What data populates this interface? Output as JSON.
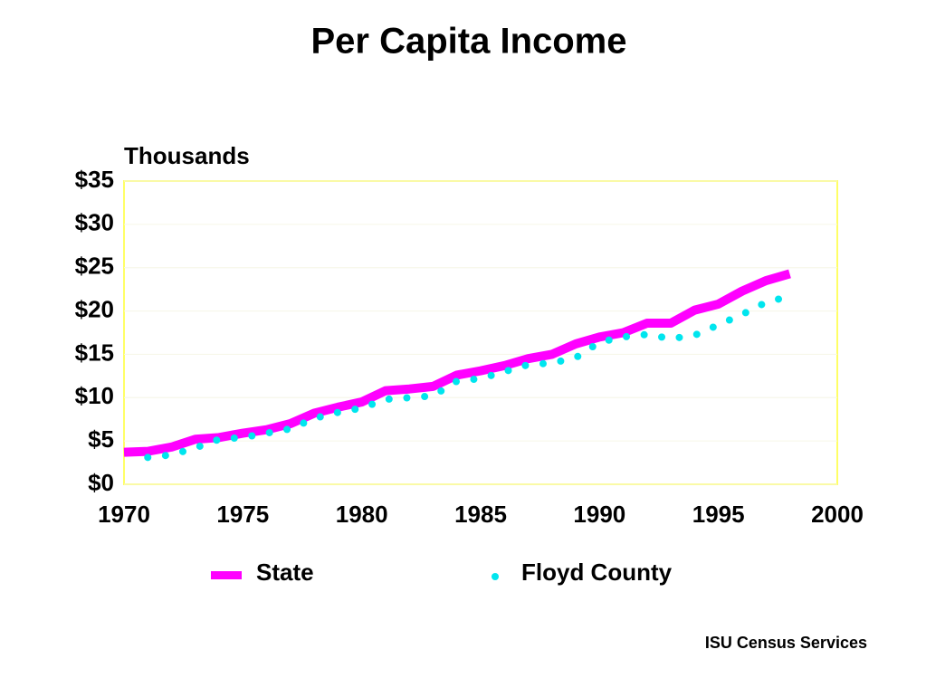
{
  "chart_data": {
    "type": "line",
    "title": "Per Capita Income",
    "y_label": "Thousands",
    "source": "ISU Census Services",
    "x": [
      1970,
      1971,
      1972,
      1973,
      1974,
      1975,
      1976,
      1977,
      1978,
      1979,
      1980,
      1981,
      1982,
      1983,
      1984,
      1985,
      1986,
      1987,
      1988,
      1989,
      1990,
      1991,
      1992,
      1993,
      1994,
      1995,
      1996,
      1997,
      1998
    ],
    "series": [
      {
        "name": "State",
        "color": "#ff00ff",
        "style": "solid",
        "values": [
          3.7,
          3.8,
          4.3,
          5.2,
          5.4,
          5.9,
          6.3,
          7.0,
          8.2,
          8.9,
          9.5,
          10.8,
          11.0,
          11.3,
          12.6,
          13.1,
          13.7,
          14.5,
          15.0,
          16.2,
          17.0,
          17.5,
          18.6,
          18.6,
          20.1,
          20.8,
          22.3,
          23.5,
          24.3
        ]
      },
      {
        "name": "Floyd County",
        "color": "#00e5ee",
        "style": "dotted",
        "values": [
          null,
          3.1,
          3.4,
          4.2,
          5.2,
          5.4,
          5.9,
          6.4,
          7.6,
          8.3,
          8.8,
          9.8,
          10.0,
          10.2,
          11.9,
          12.2,
          13.0,
          13.8,
          14.0,
          14.6,
          16.4,
          17.0,
          17.3,
          16.8,
          17.2,
          18.4,
          19.6,
          21.0,
          21.7
        ]
      }
    ],
    "xlim": [
      1970,
      2000
    ],
    "xticks": [
      1970,
      1975,
      1980,
      1985,
      1990,
      1995,
      2000
    ],
    "ylim": [
      0,
      35
    ],
    "yticks": [
      {
        "value": 0,
        "label": "$0"
      },
      {
        "value": 5,
        "label": "$5"
      },
      {
        "value": 10,
        "label": "$10"
      },
      {
        "value": 15,
        "label": "$15"
      },
      {
        "value": 20,
        "label": "$20"
      },
      {
        "value": 25,
        "label": "$25"
      },
      {
        "value": 30,
        "label": "$30"
      },
      {
        "value": 35,
        "label": "$35"
      }
    ],
    "grid": true,
    "legend": "bottom"
  }
}
